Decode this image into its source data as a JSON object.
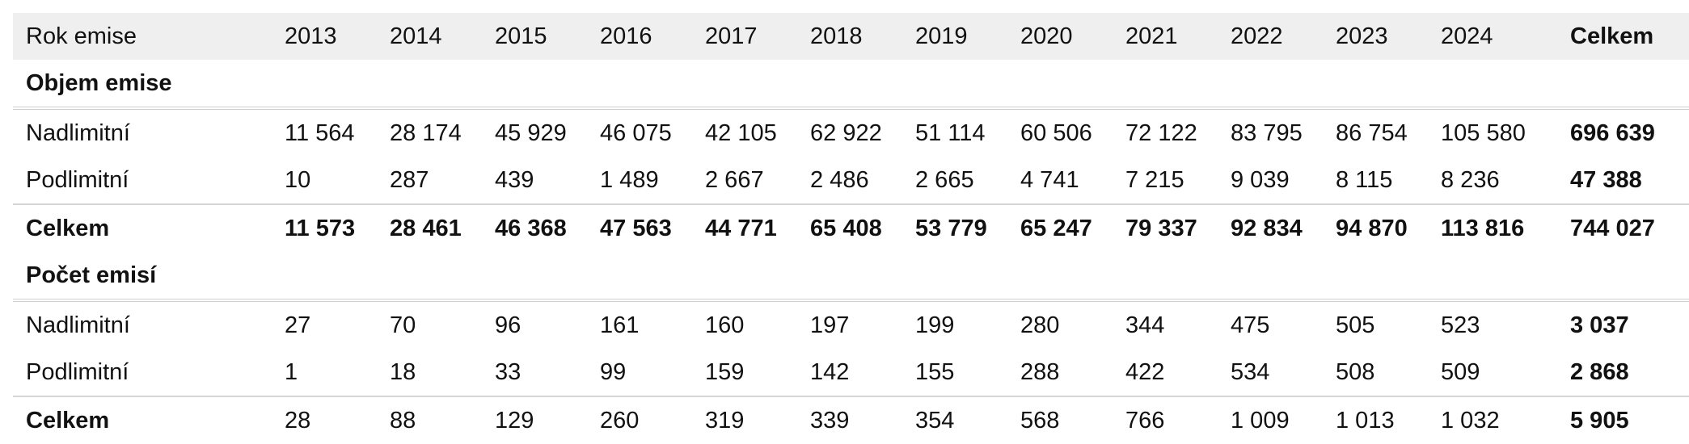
{
  "header": {
    "label": "Rok emise",
    "years": [
      "2013",
      "2014",
      "2015",
      "2016",
      "2017",
      "2018",
      "2019",
      "2020",
      "2021",
      "2022",
      "2023",
      "2024"
    ],
    "total": "Celkem"
  },
  "sections": [
    {
      "title": "Objem emise",
      "rows": [
        {
          "label": "Nadlimitní",
          "values": [
            "11 564",
            "28 174",
            "45 929",
            "46 075",
            "42 105",
            "62 922",
            "51 114",
            "60 506",
            "72 122",
            "83 795",
            "86 754",
            "105 580"
          ],
          "total": "696 639"
        },
        {
          "label": "Podlimitní",
          "values": [
            "10",
            "287",
            "439",
            "1 489",
            "2 667",
            "2 486",
            "2 665",
            "4 741",
            "7 215",
            "9 039",
            "8 115",
            "8 236"
          ],
          "total": "47 388"
        }
      ],
      "sum": {
        "label": "Celkem",
        "values": [
          "11 573",
          "28 461",
          "46 368",
          "47 563",
          "44 771",
          "65 408",
          "53 779",
          "65 247",
          "79 337",
          "92 834",
          "94 870",
          "113 816"
        ],
        "total": "744 027"
      }
    },
    {
      "title": "Počet emisí",
      "rows": [
        {
          "label": "Nadlimitní",
          "values": [
            "27",
            "70",
            "96",
            "161",
            "160",
            "197",
            "199",
            "280",
            "344",
            "475",
            "505",
            "523"
          ],
          "total": "3 037"
        },
        {
          "label": "Podlimitní",
          "values": [
            "1",
            "18",
            "33",
            "99",
            "159",
            "142",
            "155",
            "288",
            "422",
            "534",
            "508",
            "509"
          ],
          "total": "2 868"
        }
      ],
      "sum": {
        "label": "Celkem",
        "values": [
          "28",
          "88",
          "129",
          "260",
          "319",
          "339",
          "354",
          "568",
          "766",
          "1 009",
          "1 013",
          "1 032"
        ],
        "total": "5 905"
      }
    }
  ]
}
